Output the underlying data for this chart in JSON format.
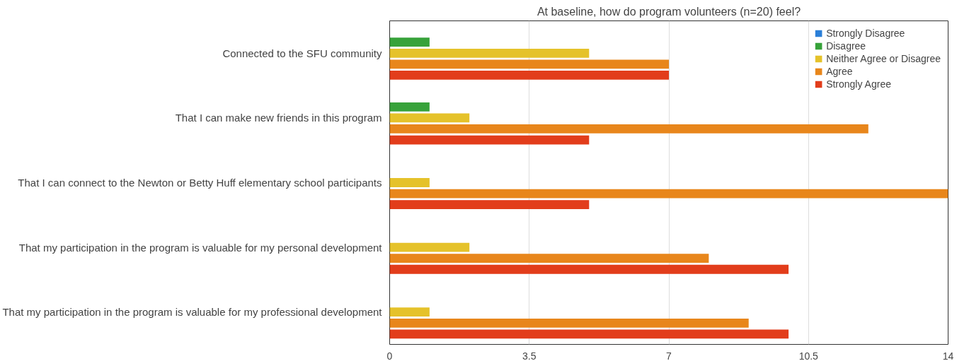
{
  "chart_data": {
    "type": "bar",
    "orientation": "horizontal",
    "title": "At baseline, how do program volunteers (n=20) feel?",
    "categories": [
      "Connected to the SFU community",
      "That I can make new friends in this program",
      "That I can connect to the Newton or Betty Huff elementary school participants",
      "That my participation in the program is valuable for my personal development",
      "That my participation in the program is valuable for my professional development"
    ],
    "series": [
      {
        "name": "Strongly Disagree",
        "color": "#2b7fd8",
        "values": [
          0,
          0,
          0,
          0,
          0
        ]
      },
      {
        "name": "Disagree",
        "color": "#37a23a",
        "values": [
          1,
          1,
          0,
          0,
          0
        ]
      },
      {
        "name": "Neither Agree or Disagree",
        "color": "#e5c22a",
        "values": [
          5,
          2,
          1,
          2,
          1
        ]
      },
      {
        "name": "Agree",
        "color": "#e8861b",
        "values": [
          7,
          12,
          14,
          8,
          9
        ]
      },
      {
        "name": "Strongly Agree",
        "color": "#e23d1b",
        "values": [
          7,
          5,
          5,
          10,
          10
        ]
      }
    ],
    "xlim": [
      0,
      14
    ],
    "xticks": [
      0,
      3.5,
      7,
      10.5,
      14
    ],
    "grid": "x",
    "legend": "top right"
  }
}
